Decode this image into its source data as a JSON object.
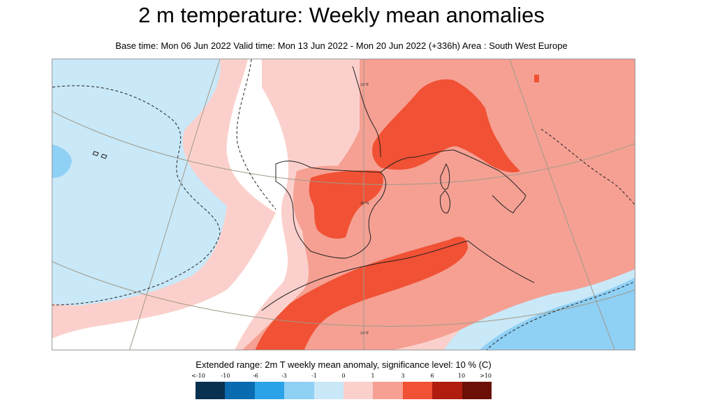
{
  "title": "2 m temperature: Weekly mean anomalies",
  "subtitle": "Base time: Mon 06 Jun 2022 Valid time: Mon 13 Jun 2022 - Mon 20 Jun 2022 (+336h) Area : South West Europe",
  "map": {
    "grid_labels": [
      "10°E",
      "40°N",
      "10°E"
    ]
  },
  "legend": {
    "title": "Extended range: 2m T weekly mean anomaly, significance level: 10 % (C)",
    "labels": [
      "<-10",
      "-10",
      "-6",
      "-3",
      "-1",
      "0",
      "1",
      "3",
      "6",
      "10",
      ">10"
    ],
    "colors": [
      "#08304f",
      "#0a6bb0",
      "#2aa3e8",
      "#8fd0f5",
      "#c9e8f8",
      "#ffffff",
      "#fbd0cc",
      "#f5a093",
      "#f15134",
      "#b01d0e",
      "#6b0f08"
    ]
  },
  "colors": {
    "weak_warm": "#fbd0cc",
    "moderate_warm": "#f5a093",
    "strong_warm": "#f15134",
    "weak_cold": "#c9e8f8",
    "moderate_cold": "#8fd0f5",
    "strong_cold": "#2aa3e8"
  }
}
